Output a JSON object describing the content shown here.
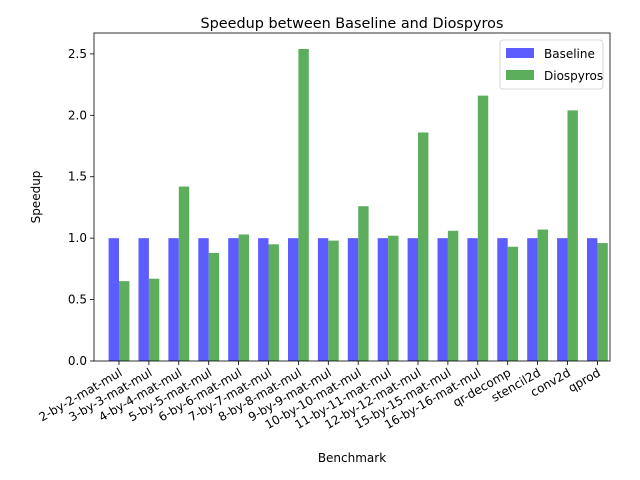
{
  "chart_data": {
    "type": "bar",
    "title": "Speedup between Baseline and Diospyros",
    "xlabel": "Benchmark",
    "ylabel": "Speedup",
    "ylim": [
      0,
      2.67
    ],
    "yticks": [
      0.0,
      0.5,
      1.0,
      1.5,
      2.0,
      2.5
    ],
    "ytick_labels": [
      "0.0",
      "0.5",
      "1.0",
      "1.5",
      "2.0",
      "2.5"
    ],
    "grid": false,
    "legend_position": "top-right",
    "categories": [
      "2-by-2-mat-mul",
      "3-by-3-mat-mul",
      "4-by-4-mat-mul",
      "5-by-5-mat-mul",
      "6-by-6-mat-mul",
      "7-by-7-mat-mul",
      "8-by-8-mat-mul",
      "9-by-9-mat-mul",
      "10-by-10-mat-mul",
      "11-by-11-mat-mul",
      "12-by-12-mat-mul",
      "15-by-15-mat-mul",
      "16-by-16-mat-mul",
      "qr-decomp",
      "stencil2d",
      "conv2d",
      "qprod"
    ],
    "series": [
      {
        "name": "Baseline",
        "color": "#3333ff",
        "values": [
          1.0,
          1.0,
          1.0,
          1.0,
          1.0,
          1.0,
          1.0,
          1.0,
          1.0,
          1.0,
          1.0,
          1.0,
          1.0,
          1.0,
          1.0,
          1.0,
          1.0
        ]
      },
      {
        "name": "Diospyros",
        "color": "#339933",
        "values": [
          0.65,
          0.67,
          1.42,
          0.88,
          1.03,
          0.95,
          2.54,
          0.98,
          1.26,
          1.02,
          1.86,
          1.06,
          2.16,
          0.93,
          1.07,
          2.04,
          0.96
        ]
      }
    ]
  }
}
